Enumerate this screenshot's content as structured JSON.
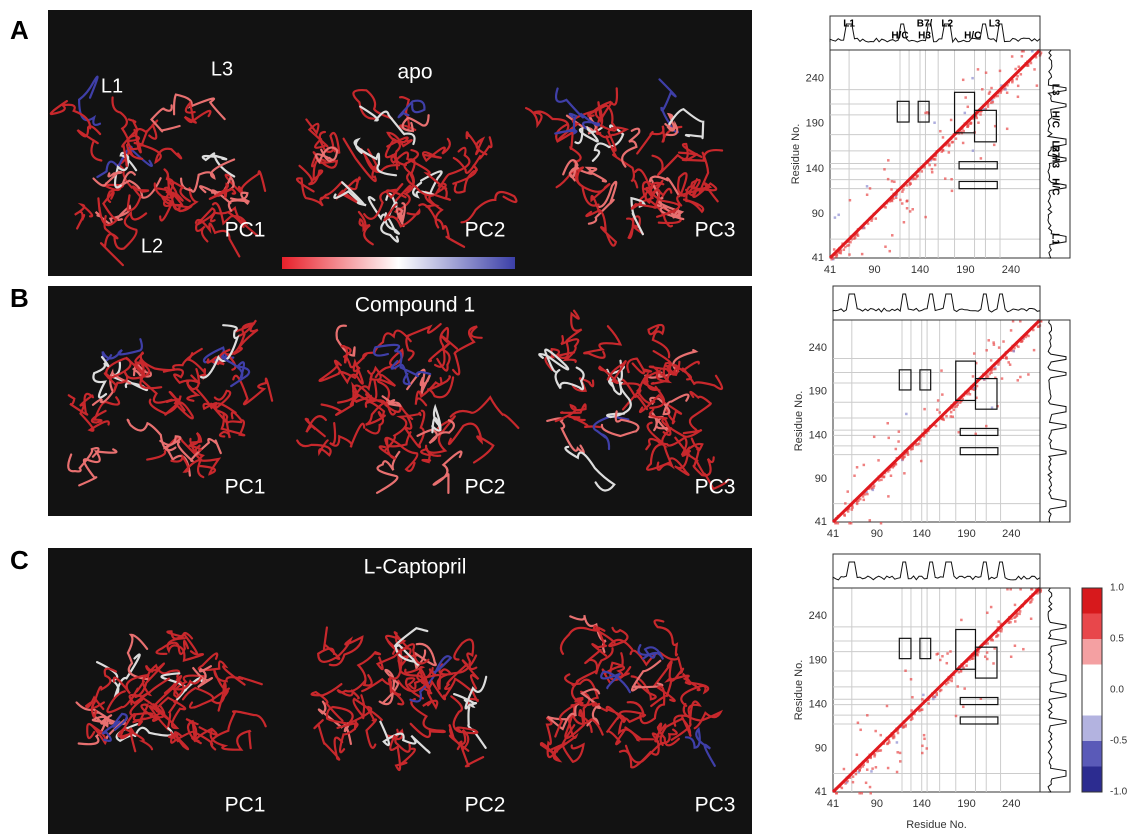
{
  "figure": {
    "panels": [
      {
        "label": "A",
        "title": "apo",
        "pcs": [
          "PC1",
          "PC2",
          "PC3"
        ],
        "loops": [
          "L1",
          "L3",
          "L2"
        ],
        "matrix": {
          "top_labels": [
            "L1",
            "H/C",
            "B7/",
            "H3",
            "L2",
            "H/C",
            "L3"
          ],
          "right_labels": [
            "L3",
            "H/C",
            "L2",
            "B7/",
            "H3",
            "H/C",
            "L1"
          ],
          "ticks": [
            "41",
            "90",
            "140",
            "190",
            "240"
          ],
          "y_label": "Residue No."
        }
      },
      {
        "label": "B",
        "title": "Compound 1",
        "pcs": [
          "PC1",
          "PC2",
          "PC3"
        ],
        "matrix": {
          "ticks": [
            "41",
            "90",
            "140",
            "190",
            "240"
          ],
          "y_label": "Residue No."
        }
      },
      {
        "label": "C",
        "title": "L-Captopril",
        "pcs": [
          "PC1",
          "PC2",
          "PC3"
        ],
        "matrix": {
          "ticks": [
            "41",
            "90",
            "140",
            "190",
            "240"
          ],
          "y_label": "Residue No.",
          "x_label": "Residue No."
        }
      }
    ],
    "colorbar": {
      "ticks": [
        "1.0",
        "0.5",
        "0.0",
        "-0.5",
        "-1.0"
      ]
    }
  }
}
